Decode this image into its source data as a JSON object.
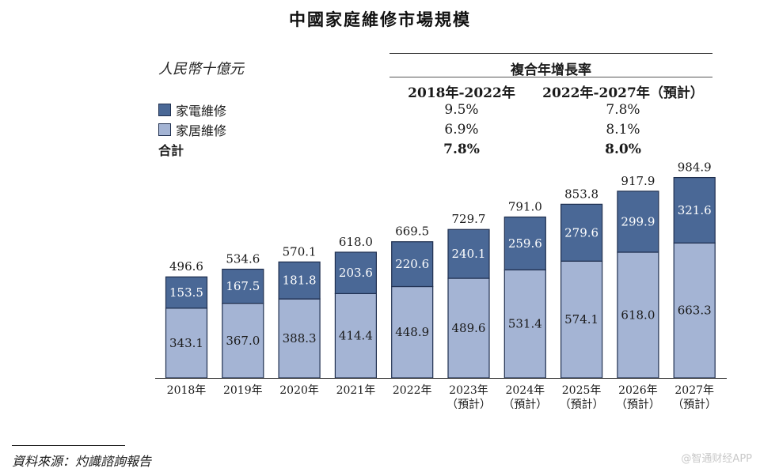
{
  "title": "中國家庭維修市場規模",
  "unit_label": "人民幣十億元",
  "cagr": {
    "header": "複合年增長率",
    "periods": [
      "2018年-2022年",
      "2022年-2027年（預計）"
    ],
    "rows": [
      {
        "label": "家電維修",
        "values": [
          "9.5%",
          "7.8%"
        ],
        "bold": false
      },
      {
        "label": "家居維修",
        "values": [
          "6.9%",
          "8.1%"
        ],
        "bold": false
      },
      {
        "label": "合計",
        "values": [
          "7.8%",
          "8.0%"
        ],
        "bold": true
      }
    ]
  },
  "source": "資料來源：灼識諮詢報告",
  "watermark": "@智通财经APP",
  "colors": {
    "appliance": "#4a6896",
    "home": "#a4b4d4",
    "bar_border": "#1f2f4f"
  },
  "chart_data": {
    "type": "bar",
    "stacked": true,
    "categories": [
      "2018年",
      "2019年",
      "2020年",
      "2021年",
      "2022年",
      "2023年\n（預計）",
      "2024年\n（預計）",
      "2025年\n（預計）",
      "2026年\n（預計）",
      "2027年\n（預計）"
    ],
    "series": [
      {
        "name": "家居維修",
        "values": [
          343.1,
          367.0,
          388.3,
          414.4,
          448.9,
          489.6,
          531.4,
          574.1,
          618.0,
          663.3
        ]
      },
      {
        "name": "家電維修",
        "values": [
          153.5,
          167.5,
          181.8,
          203.6,
          220.6,
          240.1,
          259.6,
          279.6,
          299.9,
          321.6
        ]
      }
    ],
    "totals": [
      496.6,
      534.6,
      570.1,
      618.0,
      669.5,
      729.7,
      791.0,
      853.8,
      917.9,
      984.9
    ],
    "ylim": [
      0,
      1000
    ],
    "grid": false,
    "legend": "top-left"
  }
}
